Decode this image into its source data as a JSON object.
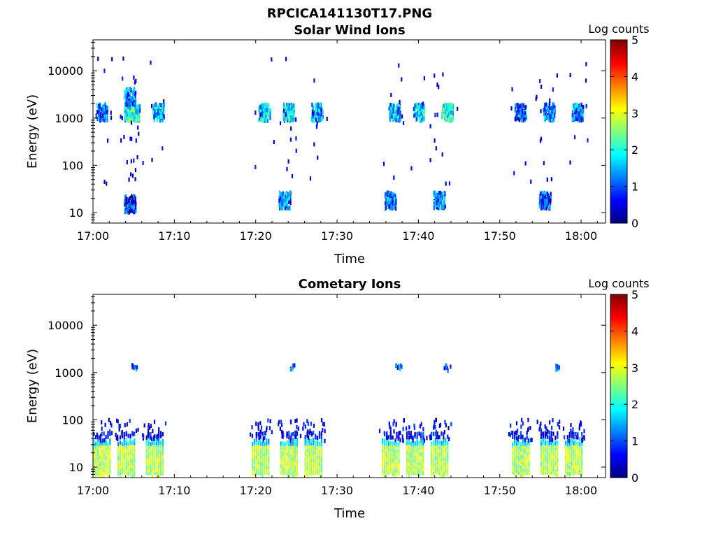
{
  "figure_title": "RPCICA141130T17.PNG",
  "chart_data": [
    {
      "type": "heatmap",
      "title": "Solar Wind Ions",
      "xlabel": "Time",
      "ylabel": "Energy (eV)",
      "yscale": "log",
      "ylim": [
        6,
        45000
      ],
      "xlim": [
        "17:00",
        "18:03"
      ],
      "xticks": [
        "17:00",
        "17:10",
        "17:20",
        "17:30",
        "17:40",
        "17:50",
        "18:00"
      ],
      "yticks": [
        10,
        100,
        1000,
        10000
      ],
      "ytick_labels": [
        "10",
        "100",
        "1000",
        "10000"
      ],
      "colorbar": {
        "label": "Log counts",
        "range": [
          0,
          5
        ],
        "ticks": [
          "0",
          "1",
          "2",
          "3",
          "4",
          "5"
        ],
        "colormap": "jet"
      },
      "blobs": [
        {
          "t": "17:01",
          "e": 1300,
          "level": 2.0
        },
        {
          "t": "17:04.5",
          "e": 1300,
          "level": 2.6
        },
        {
          "t": "17:05",
          "e": 1300,
          "level": 2.8
        },
        {
          "t": "17:08",
          "e": 1300,
          "level": 2.2
        },
        {
          "t": "17:04.5",
          "e": 2800,
          "level": 2.0
        },
        {
          "t": "17:21",
          "e": 1300,
          "level": 2.4
        },
        {
          "t": "17:24",
          "e": 1300,
          "level": 2.6
        },
        {
          "t": "17:27.5",
          "e": 1300,
          "level": 2.2
        },
        {
          "t": "17:37",
          "e": 1300,
          "level": 2.4
        },
        {
          "t": "17:40",
          "e": 1300,
          "level": 2.4
        },
        {
          "t": "17:43.5",
          "e": 1300,
          "level": 2.8
        },
        {
          "t": "17:52.5",
          "e": 1300,
          "level": 1.8
        },
        {
          "t": "17:56",
          "e": 1300,
          "level": 2.0
        },
        {
          "t": "17:59.5",
          "e": 1300,
          "level": 2.0
        },
        {
          "t": "17:04.5",
          "e": 15,
          "level": 1.6
        },
        {
          "t": "17:23.5",
          "e": 18,
          "level": 2.0
        },
        {
          "t": "17:36.5",
          "e": 18,
          "level": 2.0
        },
        {
          "t": "17:42.5",
          "e": 18,
          "level": 2.2
        },
        {
          "t": "17:55.5",
          "e": 18,
          "level": 1.8
        }
      ]
    },
    {
      "type": "heatmap",
      "title": "Cometary Ions",
      "xlabel": "Time",
      "ylabel": "Energy (eV)",
      "yscale": "log",
      "ylim": [
        6,
        45000
      ],
      "xlim": [
        "17:00",
        "18:03"
      ],
      "xticks": [
        "17:00",
        "17:10",
        "17:20",
        "17:30",
        "17:40",
        "17:50",
        "18:00"
      ],
      "yticks": [
        10,
        100,
        1000,
        10000
      ],
      "ytick_labels": [
        "10",
        "100",
        "1000",
        "10000"
      ],
      "colorbar": {
        "label": "Log counts",
        "range": [
          0,
          5
        ],
        "ticks": [
          "0",
          "1",
          "2",
          "3",
          "4",
          "5"
        ],
        "colormap": "jet"
      },
      "bursts": [
        {
          "t": "17:01"
        },
        {
          "t": "17:04"
        },
        {
          "t": "17:07.5"
        },
        {
          "t": "17:20.5"
        },
        {
          "t": "17:24"
        },
        {
          "t": "17:27"
        },
        {
          "t": "17:36.5"
        },
        {
          "t": "17:39.5"
        },
        {
          "t": "17:42.5"
        },
        {
          "t": "17:52.5"
        },
        {
          "t": "17:56"
        },
        {
          "t": "17:59"
        }
      ],
      "high_energy_spots": [
        {
          "t": "17:05",
          "e": 1300
        },
        {
          "t": "17:24.5",
          "e": 1300
        },
        {
          "t": "17:37.5",
          "e": 1250
        },
        {
          "t": "17:43.5",
          "e": 1250
        },
        {
          "t": "17:57",
          "e": 1250
        }
      ]
    }
  ]
}
